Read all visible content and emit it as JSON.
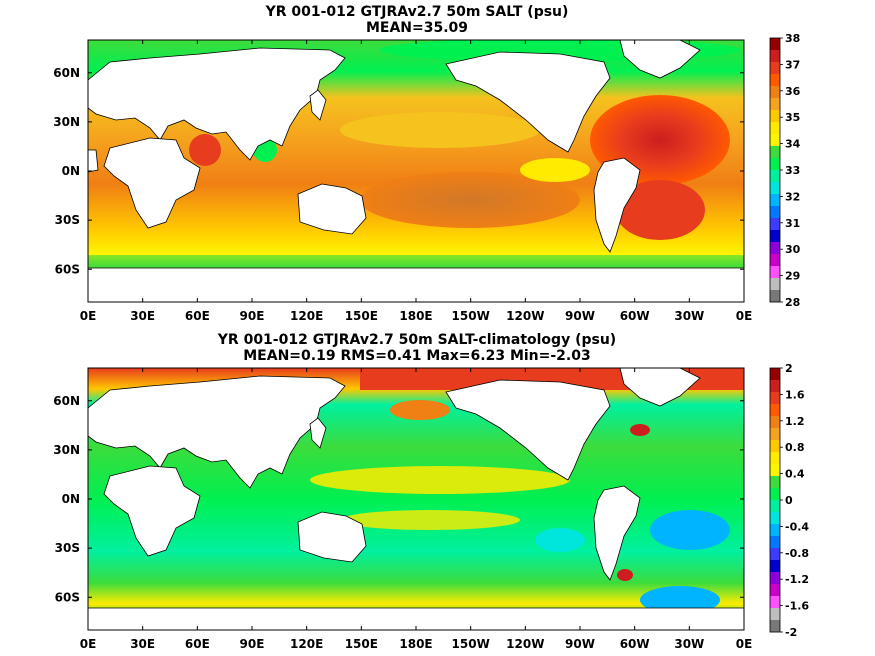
{
  "chart_data": [
    {
      "type": "heatmap",
      "title": "YR 001-012 GTJRAv2.7 50m SALT (psu)",
      "subtitle": "MEAN=35.09",
      "xticks": [
        "0E",
        "30E",
        "60E",
        "90E",
        "120E",
        "150E",
        "180E",
        "150W",
        "120W",
        "90W",
        "60W",
        "30W",
        "0E"
      ],
      "yticks": [
        "60N",
        "30N",
        "0N",
        "30S",
        "60S"
      ],
      "ytick_lat": [
        60,
        30,
        0,
        -30,
        -60
      ],
      "ylim": [
        -80,
        80
      ],
      "colorbar": {
        "labels": [
          "38",
          "37",
          "36",
          "35",
          "34",
          "33",
          "32",
          "31",
          "30",
          "29",
          "28"
        ],
        "colors": [
          "#960000",
          "#cc1e1e",
          "#e83c1e",
          "#ff5a00",
          "#f07f14",
          "#f5a21e",
          "#ffc800",
          "#ffeb00",
          "#fff500",
          "#3cdc3c",
          "#00f050",
          "#00f0a0",
          "#00e6dc",
          "#00b4ff",
          "#0078ff",
          "#3c3cff",
          "#0000cc",
          "#8c00dc",
          "#c800c8",
          "#ff50ff",
          "#bebebe",
          "#787878"
        ]
      }
    },
    {
      "type": "heatmap",
      "title": "YR 001-012 GTJRAv2.7 50m SALT-climatology (psu)",
      "subtitle": "MEAN=0.19   RMS=0.41   Max=6.23   Min=-2.03",
      "xticks": [
        "0E",
        "30E",
        "60E",
        "90E",
        "120E",
        "150E",
        "180E",
        "150W",
        "120W",
        "90W",
        "60W",
        "30W",
        "0E"
      ],
      "yticks": [
        "60N",
        "30N",
        "0N",
        "30S",
        "60S"
      ],
      "ytick_lat": [
        60,
        30,
        0,
        -30,
        -60
      ],
      "ylim": [
        -80,
        80
      ],
      "colorbar": {
        "labels": [
          "2",
          "1.6",
          "1.2",
          "0.8",
          "0.4",
          "0",
          "-0.4",
          "-0.8",
          "-1.2",
          "-1.6",
          "-2"
        ],
        "colors": [
          "#960000",
          "#cc1e1e",
          "#e83c1e",
          "#ff5a00",
          "#f07f14",
          "#f5a21e",
          "#ffc800",
          "#ffeb00",
          "#fff500",
          "#3cdc3c",
          "#00f050",
          "#00f0a0",
          "#00e6dc",
          "#00b4ff",
          "#0078ff",
          "#3c3cff",
          "#0000cc",
          "#8c00dc",
          "#c800c8",
          "#ff50ff",
          "#bebebe",
          "#787878"
        ]
      }
    }
  ]
}
